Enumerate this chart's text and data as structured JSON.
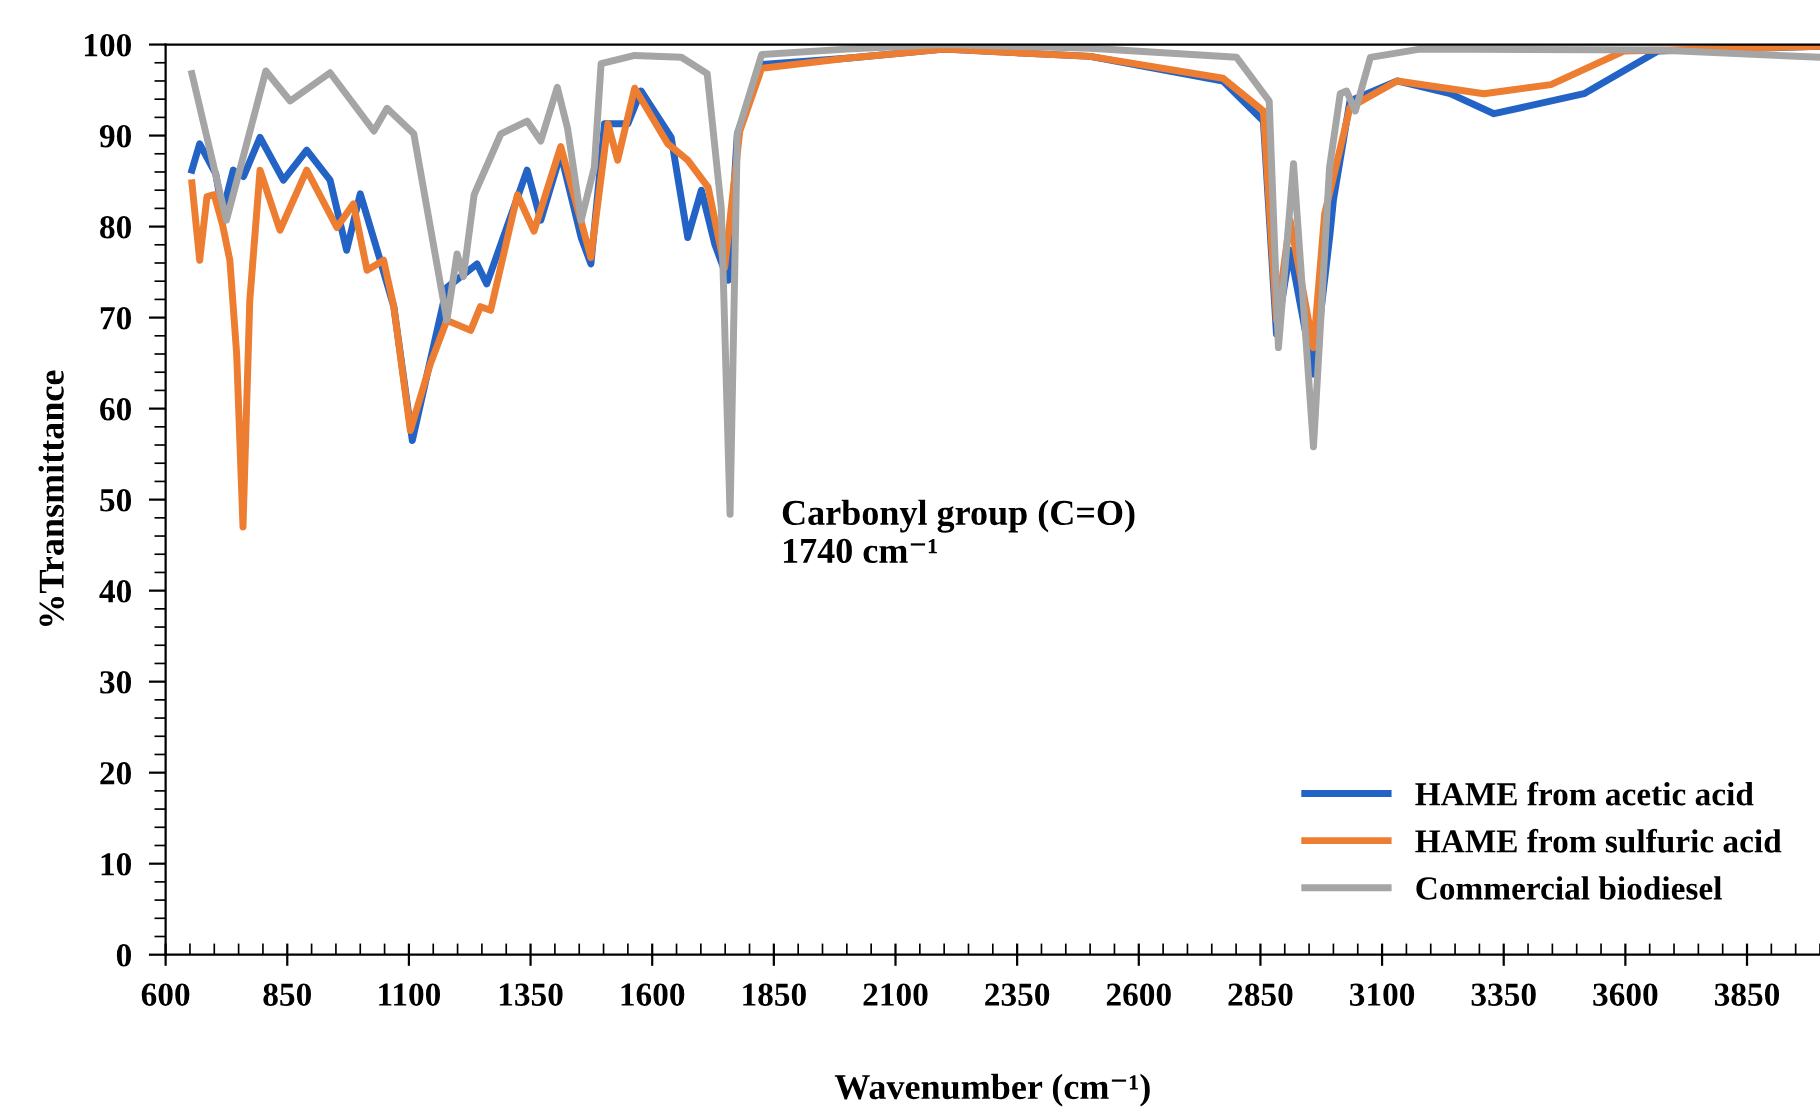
{
  "chart_data": {
    "type": "line",
    "xlabel": "Wavenumber (cm⁻¹)",
    "ylabel": "%Transmittance",
    "xlim": [
      600,
      4000
    ],
    "ylim": [
      0,
      100
    ],
    "xticks": [
      600,
      850,
      1100,
      1350,
      1600,
      1850,
      2100,
      2350,
      2600,
      2850,
      3100,
      3350,
      3600,
      3850
    ],
    "yticks": [
      0,
      10,
      20,
      30,
      40,
      50,
      60,
      70,
      80,
      90,
      100
    ],
    "grid": false,
    "legend": "bottom right",
    "marker": "none",
    "line_style": "solid",
    "annotations": [
      "Carbonyl group (C=O)\n1740 cm⁻¹"
    ],
    "series": [
      {
        "name": "HAME from acetic acid",
        "color": "#2463c6",
        "x": [
          654,
          670,
          703,
          717,
          739,
          760,
          794,
          842,
          890,
          938,
          972,
          1000,
          1041,
          1069,
          1107,
          1144,
          1178,
          1240,
          1260,
          1343,
          1371,
          1412,
          1454,
          1474,
          1502,
          1550,
          1577,
          1639,
          1673,
          1701,
          1729,
          1756,
          1775,
          1825,
          2000,
          2200,
          2500,
          2773,
          2856,
          2883,
          2911,
          2959,
          2993,
          3000,
          3034,
          3131,
          3240,
          3330,
          3515,
          3667,
          4000
        ],
        "values": [
          86.2,
          89.1,
          85.8,
          81.6,
          86.2,
          85.5,
          89.8,
          85.1,
          88.4,
          85.1,
          77.4,
          83.6,
          76.3,
          71.2,
          56.5,
          65.3,
          73.3,
          75.9,
          73.7,
          86.2,
          80.7,
          88,
          78.8,
          75.9,
          91.3,
          91.3,
          94.9,
          89.8,
          78.8,
          84,
          78,
          74.1,
          90.2,
          97.8,
          98.5,
          99.5,
          98.7,
          96,
          91.6,
          68.2,
          77.4,
          63.8,
          79.2,
          82.9,
          93.8,
          96,
          94.6,
          92.4,
          94.6,
          99.3,
          99.8
        ]
      },
      {
        "name": "HAME from sulfuric acid",
        "color": "#ed7d31",
        "x": [
          654,
          670,
          685,
          700,
          717,
          732,
          746,
          759,
          773,
          794,
          835,
          890,
          952,
          986,
          1014,
          1048,
          1069,
          1103,
          1144,
          1178,
          1227,
          1247,
          1268,
          1323,
          1357,
          1412,
          1474,
          1509,
          1529,
          1564,
          1632,
          1673,
          1715,
          1749,
          1780,
          1825,
          2000,
          2200,
          2500,
          2773,
          2856,
          2883,
          2911,
          2959,
          2982,
          3034,
          3131,
          3309,
          3447,
          3598,
          4000
        ],
        "values": [
          84.8,
          76.3,
          83.3,
          83.5,
          80.2,
          76.3,
          66,
          47,
          71.9,
          86.2,
          79.6,
          86.2,
          79.9,
          82.5,
          75.2,
          76.3,
          71.2,
          57.6,
          64.9,
          69.7,
          68.6,
          71.2,
          70.8,
          83.5,
          79.5,
          88.8,
          76.6,
          91.3,
          87.3,
          95.2,
          89.1,
          87.3,
          84.3,
          75.5,
          90.5,
          97.4,
          98.5,
          99.5,
          98.7,
          96.3,
          92.7,
          69.7,
          80.7,
          66.7,
          81.4,
          93.1,
          96,
          94.6,
          95.6,
          99.3,
          99.8
        ]
      },
      {
        "name": "Commercial biodiesel",
        "color": "#a5a5a5",
        "x": [
          654,
          725,
          806,
          856,
          938,
          1028,
          1055,
          1110,
          1178,
          1199,
          1212,
          1234,
          1289,
          1343,
          1371,
          1405,
          1426,
          1454,
          1481,
          1495,
          1564,
          1660,
          1713,
          1742,
          1760,
          1775,
          1825,
          2000,
          2200,
          2500,
          2801,
          2868,
          2887,
          2918,
          2959,
          2992,
          3014,
          3027,
          3045,
          3076,
          3178,
          3667,
          4000
        ],
        "values": [
          96.8,
          80.7,
          97.1,
          93.8,
          96.9,
          90.5,
          93,
          90.2,
          69.7,
          77,
          74.5,
          83.5,
          90.2,
          91.6,
          89.4,
          95.3,
          90.8,
          80.7,
          86.5,
          97.9,
          98.8,
          98.6,
          96.8,
          82,
          48.4,
          90.2,
          98.9,
          99.5,
          100,
          99.6,
          98.6,
          93.8,
          66.7,
          86.9,
          55.8,
          86.5,
          94.6,
          94.9,
          92.7,
          98.6,
          99.5,
          99.4,
          98.6
        ]
      }
    ]
  }
}
